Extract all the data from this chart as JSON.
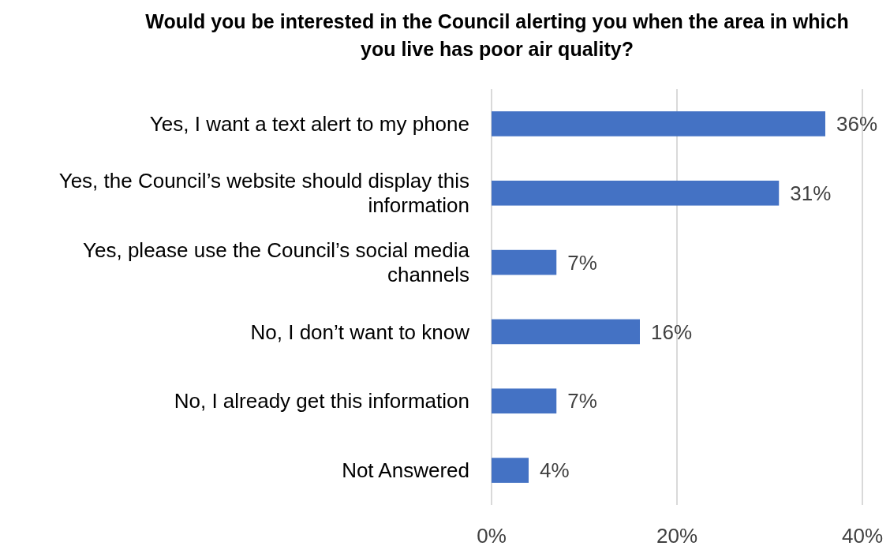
{
  "chart_data": {
    "type": "bar",
    "orientation": "horizontal",
    "title": "Would you be interested in the Council alerting you when the area in which you live has poor air quality?",
    "categories": [
      "Yes, I want a text alert to my phone",
      "Yes, the Council’s website should display this information",
      "Yes, please use the Council’s social media channels",
      "No, I don’t want to know",
      "No, I already get this information",
      "Not Answered"
    ],
    "values": [
      36,
      31,
      7,
      16,
      7,
      4
    ],
    "value_labels": [
      "36%",
      "31%",
      "7%",
      "16%",
      "7%",
      "4%"
    ],
    "color": "#4472c4",
    "xlim": [
      0,
      40
    ],
    "xticks": [
      {
        "value": 0,
        "label": "0%"
      },
      {
        "value": 20,
        "label": "20%"
      },
      {
        "value": 40,
        "label": "40%"
      }
    ],
    "grid": "x"
  }
}
